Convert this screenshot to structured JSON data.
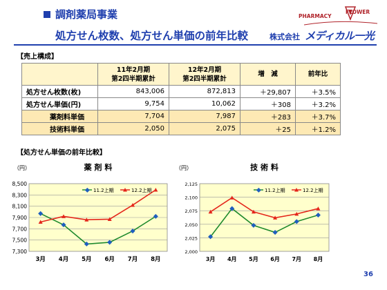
{
  "header": {
    "title_line1": "調剤薬局事業",
    "title_line2": "処方せん枚数、処方せん単価の前年比較",
    "company_prefix": "株式会社",
    "company_name": "メディカル一光",
    "logo_text_1": "PHARMACY",
    "logo_text_2": "FLOWER",
    "brand_color": "#1f3fae"
  },
  "sales_section": {
    "label": "【売上構成】",
    "columns": [
      "11年2月期\n第2四半期累計",
      "12年2月期\n第2四半期累計",
      "増　減",
      "前年比"
    ],
    "rows": [
      {
        "label": "処方せん枚数(枚)",
        "v2011": "843,006",
        "v2012": "872,813",
        "change": "＋29,807",
        "ratio": "＋3.5%"
      },
      {
        "label": "処方せん単価(円)",
        "v2011": "9,754",
        "v2012": "10,062",
        "change": "＋308",
        "ratio": "＋3.2%"
      },
      {
        "label": "薬剤料単価",
        "v2011": "7,704",
        "v2012": "7,987",
        "change": "＋283",
        "ratio": "＋3.7%"
      },
      {
        "label": "技術料単価",
        "v2011": "2,050",
        "v2012": "2,075",
        "change": "＋25",
        "ratio": "＋1.2%"
      }
    ]
  },
  "charts_section": {
    "label": "【処方せん単価の前年比較】"
  },
  "chart_data": [
    {
      "type": "line",
      "title": "薬 剤 料",
      "unit_label": "（円）",
      "categories": [
        "3月",
        "4月",
        "5月",
        "6月",
        "7月",
        "8月"
      ],
      "ylim": [
        7300,
        8500
      ],
      "yticks": [
        7300,
        7500,
        7700,
        7900,
        8100,
        8300,
        8500
      ],
      "ytick_labels": [
        "7,300",
        "7,500",
        "7,700",
        "7,900",
        "8,100",
        "8,300",
        "8,500"
      ],
      "grid": true,
      "legend": "top",
      "series": [
        {
          "name": "11.2上期",
          "color": "#1f8a2e",
          "marker_color": "#1f5fbf",
          "values": [
            7970,
            7770,
            7430,
            7460,
            7660,
            7920
          ]
        },
        {
          "name": "12.2上期",
          "color": "#e4261b",
          "marker_color": "#e4261b",
          "values": [
            7820,
            7920,
            7860,
            7870,
            8120,
            8390
          ]
        }
      ]
    },
    {
      "type": "line",
      "title": "技 術 料",
      "unit_label": "（円）",
      "categories": [
        "3月",
        "4月",
        "5月",
        "6月",
        "7月",
        "8月"
      ],
      "ylim": [
        2000,
        2125
      ],
      "yticks": [
        2000,
        2025,
        2050,
        2075,
        2100,
        2125
      ],
      "ytick_labels": [
        "2,000",
        "2,025",
        "2,050",
        "2,075",
        "2,100",
        "2,125"
      ],
      "grid": true,
      "legend": "top",
      "series": [
        {
          "name": "11.2上期",
          "color": "#1f8a2e",
          "marker_color": "#1f5fbf",
          "values": [
            2027,
            2079,
            2048,
            2035,
            2055,
            2067
          ]
        },
        {
          "name": "12.2上期",
          "color": "#e4261b",
          "marker_color": "#e4261b",
          "values": [
            2073,
            2099,
            2073,
            2062,
            2069,
            2079
          ]
        }
      ]
    }
  ],
  "footer": {
    "page_number": "36"
  }
}
